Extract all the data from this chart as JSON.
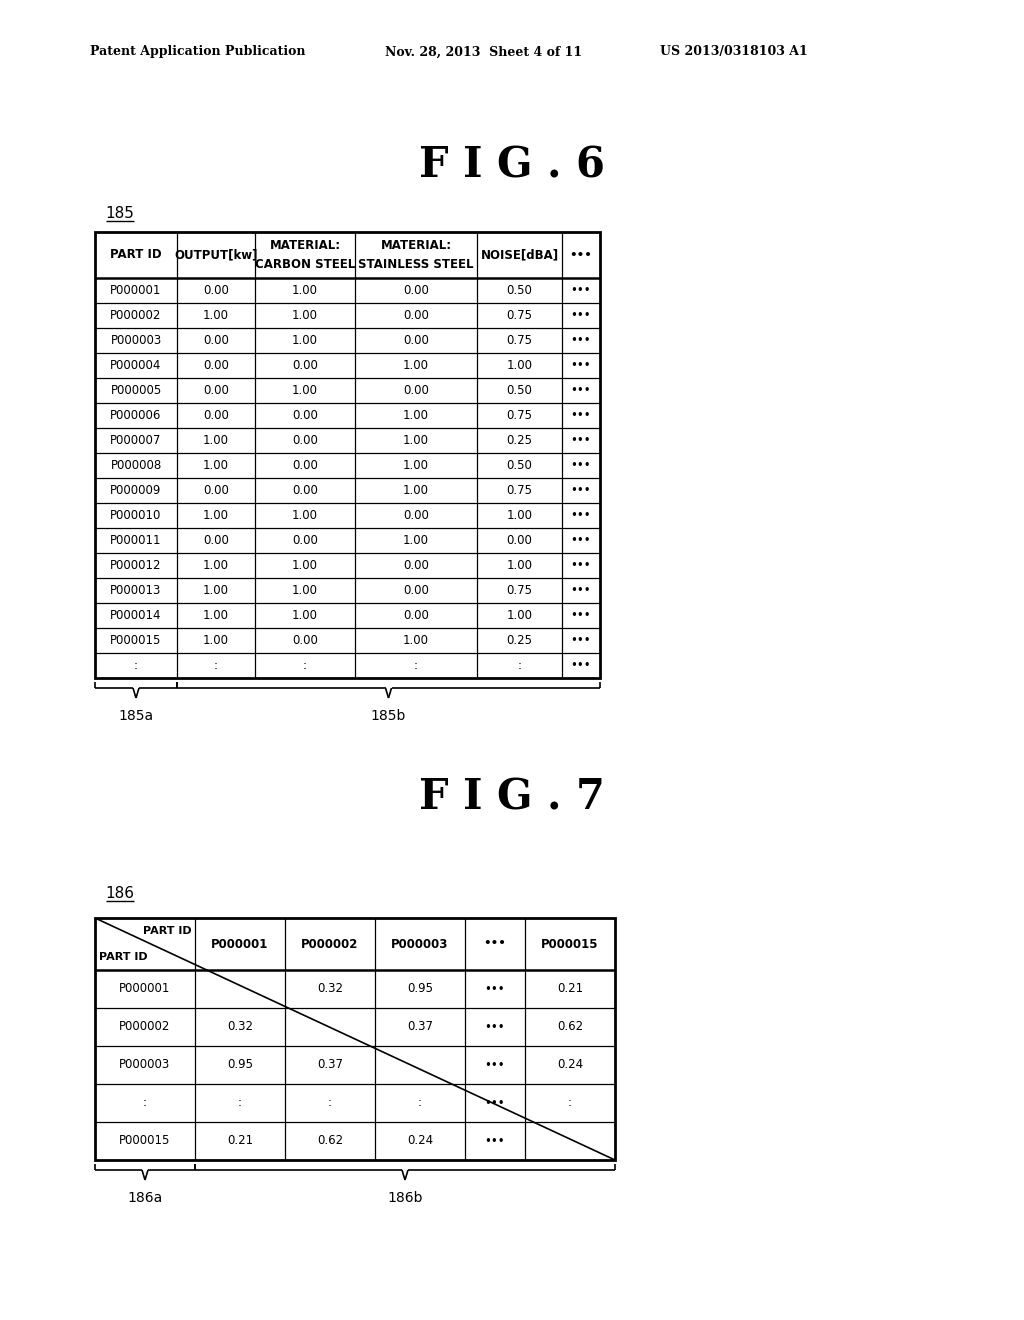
{
  "header_left": "Patent Application Publication",
  "header_mid": "Nov. 28, 2013  Sheet 4 of 11",
  "header_right": "US 2013/0318103 A1",
  "fig6_title": "F I G . 6",
  "fig7_title": "F I G . 7",
  "label_185": "185",
  "label_185a": "185a",
  "label_185b": "185b",
  "label_186": "186",
  "label_186a": "186a",
  "label_186b": "186b",
  "table6_col_headers": [
    "PART ID",
    "OUTPUT[kw]",
    "MATERIAL:\nCARBON STEEL",
    "MATERIAL:\nSTAINLESS STEEL",
    "NOISE[dBA]",
    "•••"
  ],
  "table6_rows": [
    [
      "P000001",
      "0.00",
      "1.00",
      "0.00",
      "0.50",
      "•••"
    ],
    [
      "P000002",
      "1.00",
      "1.00",
      "0.00",
      "0.75",
      "•••"
    ],
    [
      "P000003",
      "0.00",
      "1.00",
      "0.00",
      "0.75",
      "•••"
    ],
    [
      "P000004",
      "0.00",
      "0.00",
      "1.00",
      "1.00",
      "•••"
    ],
    [
      "P000005",
      "0.00",
      "1.00",
      "0.00",
      "0.50",
      "•••"
    ],
    [
      "P000006",
      "0.00",
      "0.00",
      "1.00",
      "0.75",
      "•••"
    ],
    [
      "P000007",
      "1.00",
      "0.00",
      "1.00",
      "0.25",
      "•••"
    ],
    [
      "P000008",
      "1.00",
      "0.00",
      "1.00",
      "0.50",
      "•••"
    ],
    [
      "P000009",
      "0.00",
      "0.00",
      "1.00",
      "0.75",
      "•••"
    ],
    [
      "P000010",
      "1.00",
      "1.00",
      "0.00",
      "1.00",
      "•••"
    ],
    [
      "P000011",
      "0.00",
      "0.00",
      "1.00",
      "0.00",
      "•••"
    ],
    [
      "P000012",
      "1.00",
      "1.00",
      "0.00",
      "1.00",
      "•••"
    ],
    [
      "P000013",
      "1.00",
      "1.00",
      "0.00",
      "0.75",
      "•••"
    ],
    [
      "P000014",
      "1.00",
      "1.00",
      "0.00",
      "1.00",
      "•••"
    ],
    [
      "P000015",
      "1.00",
      "0.00",
      "1.00",
      "0.25",
      "•••"
    ],
    [
      ":",
      ":",
      ":",
      ":",
      ":",
      "•••"
    ]
  ],
  "table7_col_headers": [
    "PART ID",
    "P000001",
    "P000002",
    "P000003",
    "•••",
    "P000015"
  ],
  "table7_rows": [
    [
      "P000001",
      "",
      "0.32",
      "0.95",
      "•••",
      "0.21"
    ],
    [
      "P000002",
      "0.32",
      "",
      "0.37",
      "•••",
      "0.62"
    ],
    [
      "P000003",
      "0.95",
      "0.37",
      "",
      "•••",
      "0.24"
    ],
    [
      ":",
      ":",
      ":",
      ":",
      "•••",
      ":"
    ],
    [
      "P000015",
      "0.21",
      "0.62",
      "0.24",
      "•••",
      ""
    ]
  ],
  "bg_color": "#ffffff",
  "text_color": "#000000",
  "line_color": "#000000"
}
